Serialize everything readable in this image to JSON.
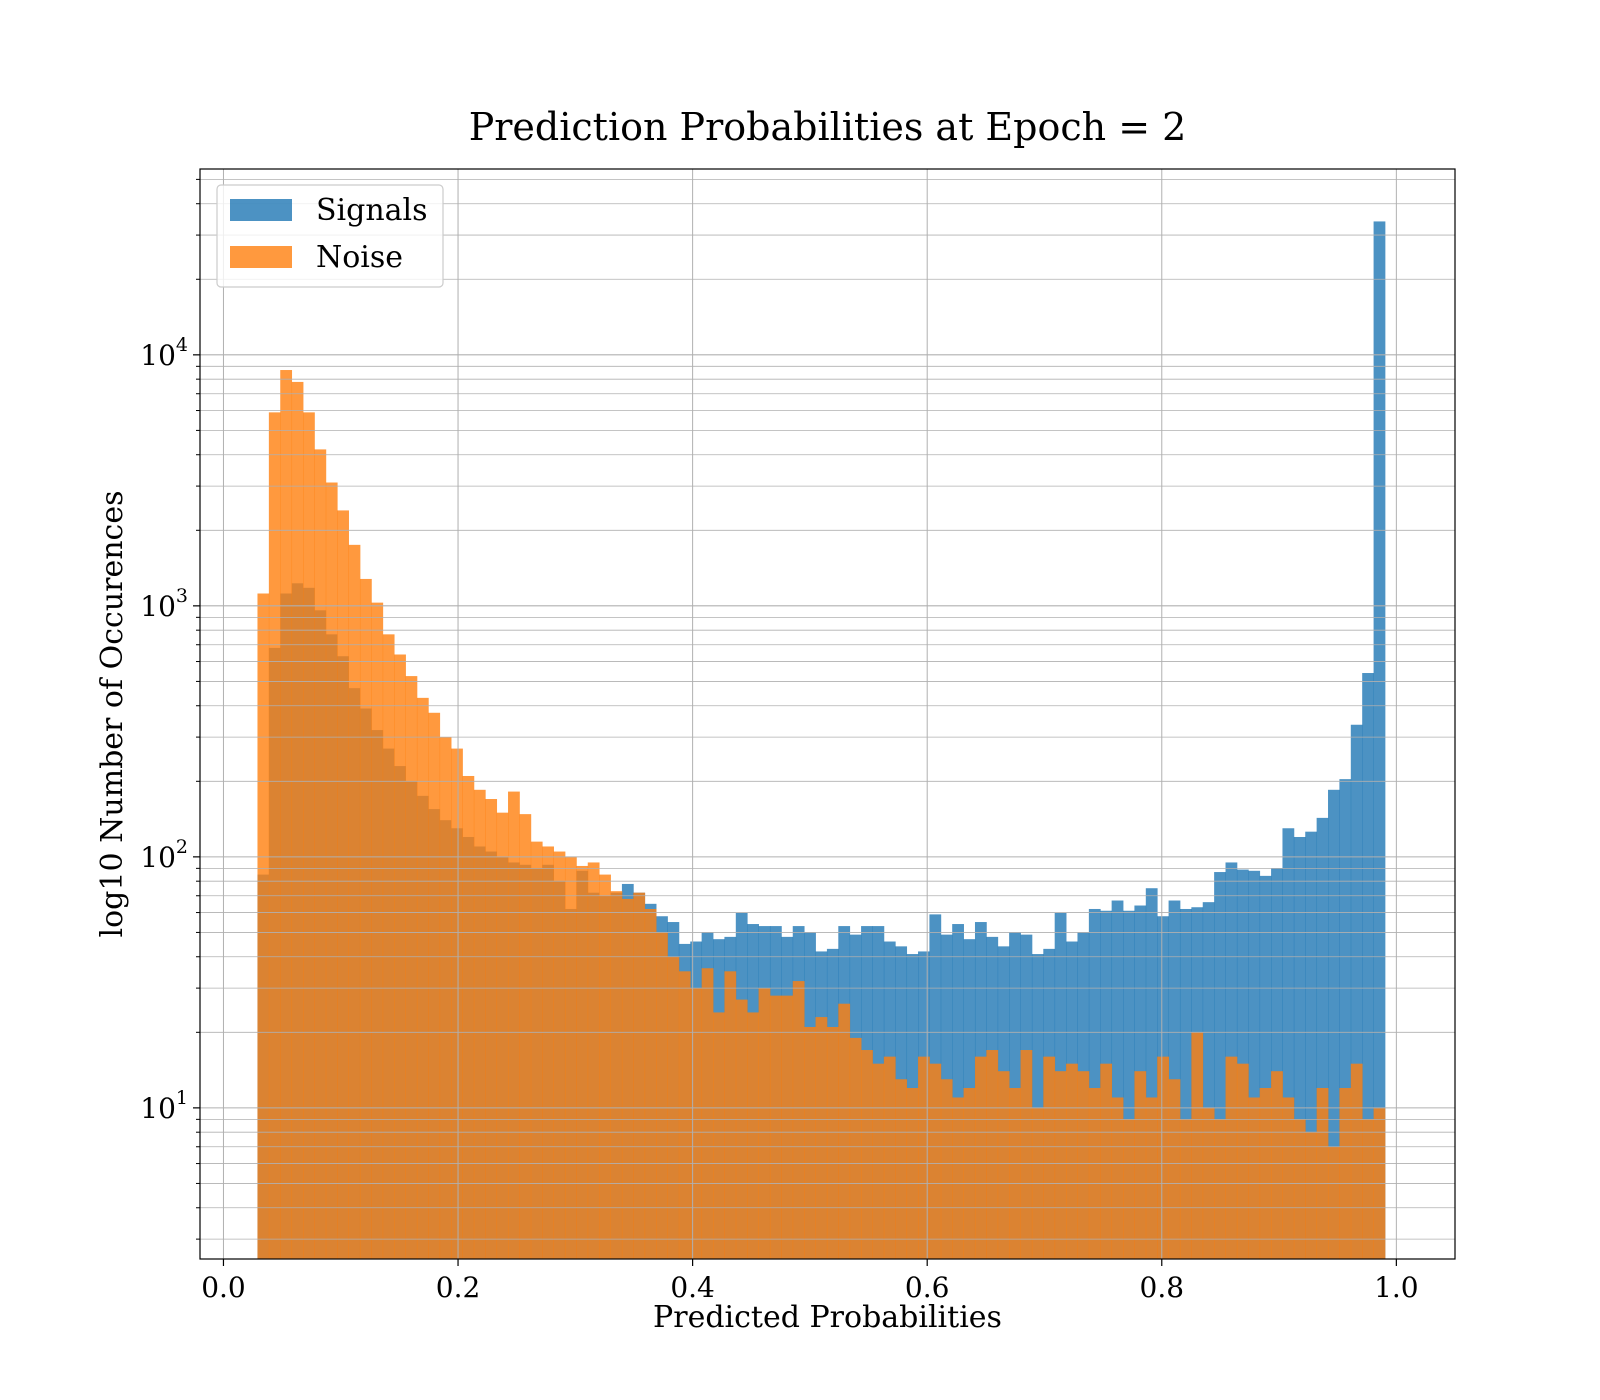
{
  "chart_data": {
    "type": "bar",
    "subtype": "histogram",
    "title": "Prediction Probabilities at Epoch = 2",
    "xlabel": "Predicted Probabilities",
    "ylabel": "log10 Number of Occurences",
    "xlim": [
      -0.02,
      1.05
    ],
    "ylim": [
      2.5,
      55000
    ],
    "yscale": "log",
    "grid": true,
    "legend_position": "upper-left",
    "x_ticks": [
      {
        "value": 0.0,
        "label": "0.0"
      },
      {
        "value": 0.2,
        "label": "0.2"
      },
      {
        "value": 0.4,
        "label": "0.4"
      },
      {
        "value": 0.6,
        "label": "0.6"
      },
      {
        "value": 0.8,
        "label": "0.8"
      },
      {
        "value": 1.0,
        "label": "1.0"
      }
    ],
    "y_ticks": [
      {
        "value": 10,
        "base": "10",
        "exp": "1"
      },
      {
        "value": 100,
        "base": "10",
        "exp": "2"
      },
      {
        "value": 1000,
        "base": "10",
        "exp": "3"
      },
      {
        "value": 10000,
        "base": "10",
        "exp": "4"
      }
    ],
    "bin_start": 0.029,
    "bin_width": 0.00971,
    "series": [
      {
        "name": "Signals",
        "color": "#1f77b4",
        "opacity": 0.8,
        "values": [
          85,
          680,
          1120,
          1230,
          1180,
          960,
          770,
          630,
          470,
          390,
          320,
          270,
          230,
          200,
          175,
          155,
          140,
          130,
          120,
          110,
          105,
          100,
          95,
          93,
          90,
          93,
          80,
          62,
          88,
          72,
          70,
          72,
          78,
          72,
          65,
          58,
          55,
          45,
          46,
          50,
          47,
          48,
          60,
          54,
          53,
          53,
          48,
          53,
          50,
          42,
          43,
          53,
          49,
          53,
          53,
          46,
          44,
          41,
          42,
          59,
          49,
          54,
          47,
          55,
          48,
          44,
          50,
          49,
          41,
          43,
          60,
          46,
          50,
          62,
          61,
          67,
          61,
          64,
          75,
          58,
          67,
          62,
          63,
          66,
          87,
          95,
          89,
          88,
          84,
          90,
          130,
          120,
          126,
          143,
          185,
          204,
          336,
          540,
          34000
        ]
      },
      {
        "name": "Noise",
        "color": "#ff7f0e",
        "opacity": 0.8,
        "values": [
          1120,
          5900,
          8700,
          7800,
          5900,
          4200,
          3100,
          2400,
          1750,
          1280,
          1030,
          770,
          640,
          525,
          430,
          375,
          300,
          270,
          210,
          185,
          170,
          150,
          182,
          148,
          115,
          110,
          105,
          100,
          92,
          95,
          85,
          73,
          68,
          72,
          62,
          50,
          40,
          35,
          30,
          36,
          24,
          35,
          27,
          24,
          30,
          28,
          28,
          32,
          21,
          23,
          21,
          26,
          19,
          17,
          15,
          16,
          13,
          12,
          16,
          15,
          13,
          11,
          12,
          16,
          17,
          14,
          12,
          17,
          10,
          16,
          14,
          15,
          14,
          12,
          15,
          11,
          9,
          14,
          11,
          16,
          13,
          9,
          20,
          10,
          9,
          16,
          15,
          11,
          12,
          14,
          11,
          9,
          8,
          12,
          7,
          12,
          15,
          9,
          10
        ]
      }
    ]
  }
}
